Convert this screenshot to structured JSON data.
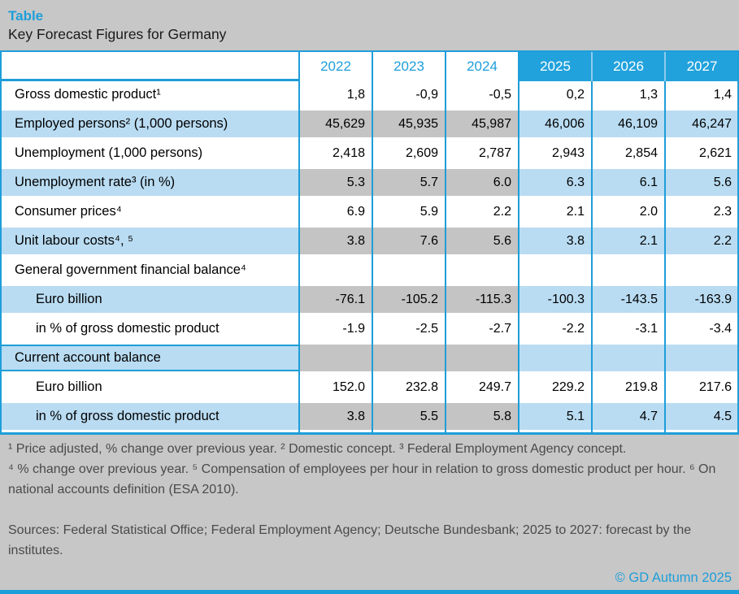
{
  "page": {
    "title_label": "Table",
    "subtitle": "Key Forecast Figures for Germany",
    "copyright": "© GD Autumn 2025"
  },
  "colors": {
    "accent": "#1E9ED9",
    "accent_fill": "#21A2DC",
    "light_blue": "#B9DCF2",
    "gray_cell": "#C4C4C4",
    "page_bg": "#C7C7C7",
    "note_text": "#4A4A4A"
  },
  "table": {
    "columns": [
      "2022",
      "2023",
      "2024",
      "2025",
      "2026",
      "2027"
    ],
    "forecast_columns": [
      "2025",
      "2026",
      "2027"
    ],
    "rows": [
      {
        "label": "Gross domestic product¹",
        "indent": false,
        "shaded": false,
        "values": [
          "1,8",
          "-0,9",
          "-0,5",
          "0,2",
          "1,3",
          "1,4"
        ]
      },
      {
        "label": "Employed persons² (1,000 persons)",
        "indent": false,
        "shaded": true,
        "values": [
          "45,629",
          "45,935",
          "45,987",
          "46,006",
          "46,109",
          "46,247"
        ]
      },
      {
        "label": "Unemployment (1,000 persons)",
        "indent": false,
        "shaded": false,
        "values": [
          "2,418",
          "2,609",
          "2,787",
          "2,943",
          "2,854",
          "2,621"
        ]
      },
      {
        "label": "Unemployment rate³ (in %)",
        "indent": false,
        "shaded": true,
        "values": [
          "5.3",
          "5.7",
          "6.0",
          "6.3",
          "6.1",
          "5.6"
        ]
      },
      {
        "label": "Consumer prices⁴",
        "indent": false,
        "shaded": false,
        "values": [
          "6.9",
          "5.9",
          "2.2",
          "2.1",
          "2.0",
          "2.3"
        ]
      },
      {
        "label": "Unit labour costs⁴, ⁵",
        "indent": false,
        "shaded": true,
        "values": [
          "3.8",
          "7.6",
          "5.6",
          "3.8",
          "2.1",
          "2.2"
        ]
      },
      {
        "label": "General government financial balance⁴",
        "indent": false,
        "shaded": false,
        "values": [
          "",
          "",
          "",
          "",
          "",
          ""
        ]
      },
      {
        "label": "Euro billion",
        "indent": true,
        "shaded": true,
        "values": [
          "-76.1",
          "-105.2",
          "-115.3",
          "-100.3",
          "-143.5",
          "-163.9"
        ]
      },
      {
        "label": "in % of gross domestic product",
        "indent": true,
        "shaded": false,
        "values": [
          "-1.9",
          "-2.5",
          "-2.7",
          "-2.2",
          "-3.1",
          "-3.4"
        ]
      },
      {
        "label": "Current account balance",
        "indent": false,
        "shaded": true,
        "section_border": true,
        "values": [
          "",
          "",
          "",
          "",
          "",
          ""
        ]
      },
      {
        "label": "Euro billion",
        "indent": true,
        "shaded": false,
        "values": [
          "152.0",
          "232.8",
          "249.7",
          "229.2",
          "219.8",
          "217.6"
        ]
      },
      {
        "label": "in % of gross domestic product",
        "indent": true,
        "shaded": true,
        "values": [
          "3.8",
          "5.5",
          "5.8",
          "5.1",
          "4.7",
          "4.5"
        ]
      }
    ]
  },
  "footnotes": {
    "line1": "¹ Price adjusted, % change over previous year. ² Domestic concept. ³ Federal Employment Agency concept.",
    "line2": "⁴ % change over previous year. ⁵ Compensation of employees per hour in relation to gross domestic product per hour. ⁶ On national accounts definition (ESA 2010).",
    "sources": "Sources: Federal Statistical Office; Federal Employment Agency; Deutsche Bundesbank; 2025 to 2027: forecast by the institutes."
  }
}
